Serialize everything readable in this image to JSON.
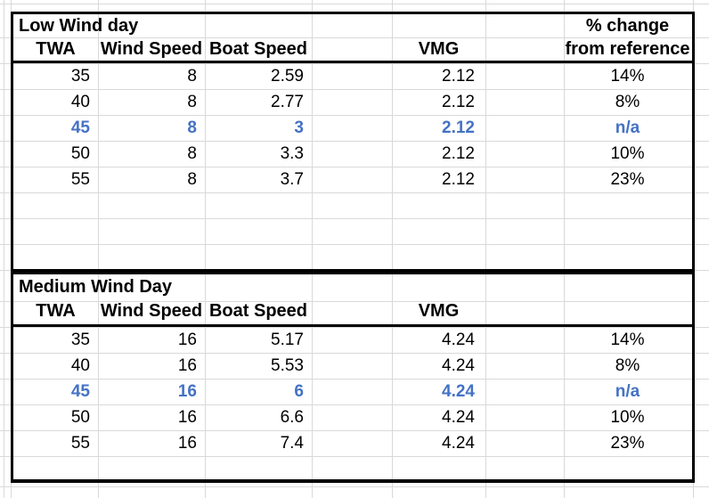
{
  "accent_color": "#4472C4",
  "gridline_color": "#d9d9d9",
  "border_color": "#000000",
  "table1": {
    "title": "Low Wind day",
    "pct_header_line1": "% change",
    "pct_header_line2": "from reference",
    "headers": {
      "twa": "TWA",
      "wind": "Wind Speed",
      "boat": "Boat Speed",
      "vmg": "VMG"
    },
    "rows": [
      {
        "twa": "35",
        "wind": "8",
        "boat": "2.59",
        "vmg": "2.12",
        "pct": "14%",
        "highlight": false
      },
      {
        "twa": "40",
        "wind": "8",
        "boat": "2.77",
        "vmg": "2.12",
        "pct": "8%",
        "highlight": false
      },
      {
        "twa": "45",
        "wind": "8",
        "boat": "3",
        "vmg": "2.12",
        "pct": "n/a",
        "highlight": true
      },
      {
        "twa": "50",
        "wind": "8",
        "boat": "3.3",
        "vmg": "2.12",
        "pct": "10%",
        "highlight": false
      },
      {
        "twa": "55",
        "wind": "8",
        "boat": "3.7",
        "vmg": "2.12",
        "pct": "23%",
        "highlight": false
      }
    ]
  },
  "table2": {
    "title": "Medium Wind Day",
    "pct_header_line1": "",
    "pct_header_line2": "",
    "headers": {
      "twa": "TWA",
      "wind": "Wind Speed",
      "boat": "Boat Speed",
      "vmg": "VMG"
    },
    "rows": [
      {
        "twa": "35",
        "wind": "16",
        "boat": "5.17",
        "vmg": "4.24",
        "pct": "14%",
        "highlight": false
      },
      {
        "twa": "40",
        "wind": "16",
        "boat": "5.53",
        "vmg": "4.24",
        "pct": "8%",
        "highlight": false
      },
      {
        "twa": "45",
        "wind": "16",
        "boat": "6",
        "vmg": "4.24",
        "pct": "n/a",
        "highlight": true
      },
      {
        "twa": "50",
        "wind": "16",
        "boat": "6.6",
        "vmg": "4.24",
        "pct": "10%",
        "highlight": false
      },
      {
        "twa": "55",
        "wind": "16",
        "boat": "7.4",
        "vmg": "4.24",
        "pct": "23%",
        "highlight": false
      }
    ]
  }
}
